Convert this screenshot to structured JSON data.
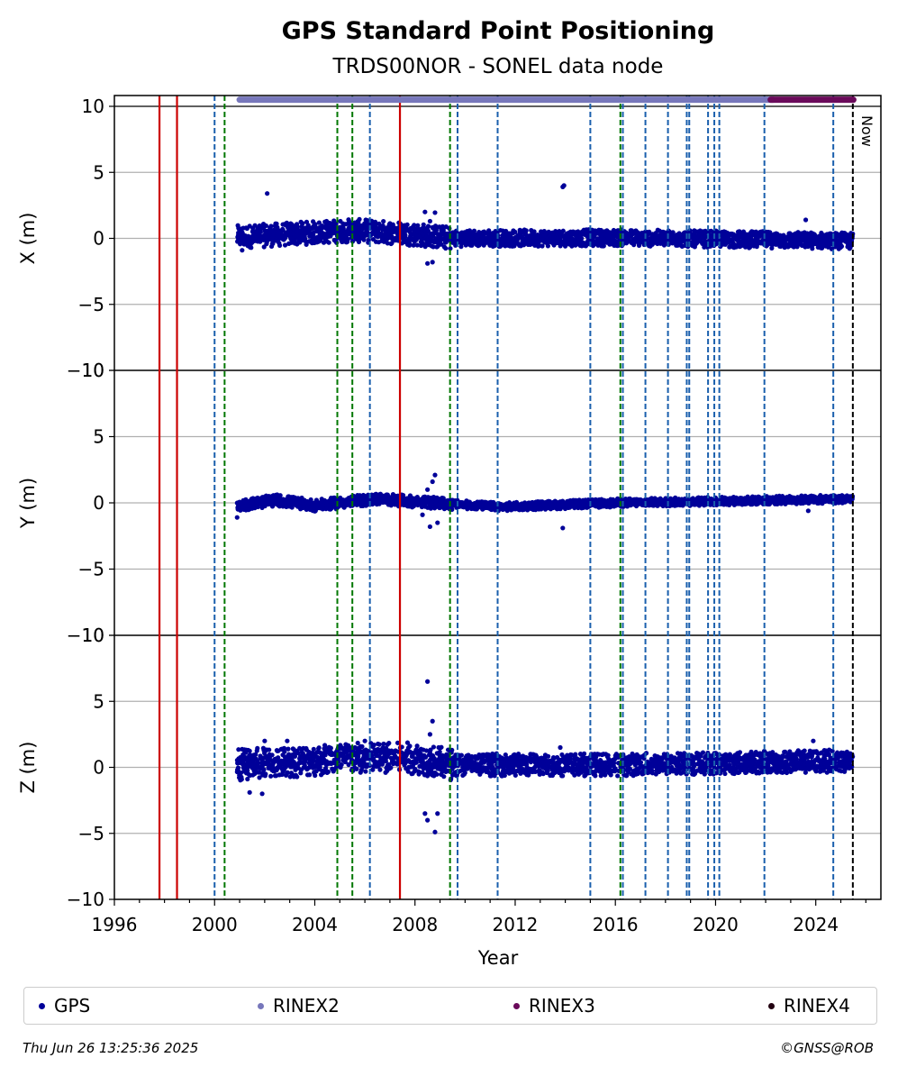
{
  "chart_data": {
    "type": "scatter",
    "title": "GPS Standard Point Positioning",
    "subtitle": "TRDS00NOR - SONEL data node",
    "xlabel": "Year",
    "xlim": [
      1996,
      2026.6
    ],
    "xticks": [
      1996,
      2000,
      2004,
      2008,
      2012,
      2016,
      2020,
      2024
    ],
    "now_label": "Now",
    "now_year": 2025.48,
    "panels": [
      {
        "ylabel": "X (m)",
        "ylim": [
          -10,
          11
        ],
        "yticks": [
          10,
          5,
          0,
          -5,
          -10
        ],
        "band": [
          -0.5,
          0.9
        ],
        "trend": [
          [
            2000.9,
            0.1
          ],
          [
            2005.5,
            0.6
          ],
          [
            2007.5,
            0.4
          ],
          [
            2009.5,
            0.0
          ],
          [
            2016,
            0.05
          ],
          [
            2025.5,
            -0.2
          ]
        ],
        "outliers": [
          [
            2002.1,
            3.4
          ],
          [
            2008.4,
            2.0
          ],
          [
            2008.5,
            -1.9
          ],
          [
            2008.7,
            -1.8
          ],
          [
            2008.8,
            1.95
          ],
          [
            2013.9,
            3.9
          ],
          [
            2013.95,
            4.0
          ],
          [
            2023.6,
            1.4
          ],
          [
            2001.1,
            -0.9
          ],
          [
            2008.6,
            1.3
          ]
        ]
      },
      {
        "ylabel": "Y (m)",
        "ylim": [
          -10,
          10
        ],
        "yticks": [
          10,
          5,
          0,
          -5,
          -10
        ],
        "band": [
          -0.35,
          0.35
        ],
        "trend": [
          [
            2000.9,
            -0.2
          ],
          [
            2002.5,
            0.2
          ],
          [
            2004.0,
            -0.2
          ],
          [
            2006.5,
            0.3
          ],
          [
            2009.5,
            -0.1
          ],
          [
            2011.5,
            -0.3
          ],
          [
            2016,
            0.0
          ],
          [
            2025.5,
            0.3
          ]
        ],
        "outliers": [
          [
            2008.5,
            1.0
          ],
          [
            2008.6,
            -1.8
          ],
          [
            2008.8,
            2.1
          ],
          [
            2008.7,
            1.6
          ],
          [
            2008.9,
            -1.5
          ],
          [
            2013.9,
            -1.9
          ],
          [
            2008.3,
            -0.9
          ],
          [
            2000.9,
            -1.1
          ],
          [
            2023.7,
            -0.6
          ]
        ]
      },
      {
        "ylabel": "Z (m)",
        "ylim": [
          -10,
          10
        ],
        "yticks": [
          10,
          5,
          0,
          -5,
          -10
        ],
        "band": [
          -0.9,
          1.0
        ],
        "trend": [
          [
            2000.9,
            0.2
          ],
          [
            2005.5,
            0.7
          ],
          [
            2008.0,
            0.7
          ],
          [
            2009.5,
            0.2
          ],
          [
            2016,
            0.2
          ],
          [
            2025.5,
            0.5
          ]
        ],
        "outliers": [
          [
            2008.5,
            6.5
          ],
          [
            2008.7,
            3.5
          ],
          [
            2008.6,
            2.5
          ],
          [
            2008.4,
            -3.5
          ],
          [
            2008.5,
            -4.0
          ],
          [
            2008.8,
            -4.9
          ],
          [
            2008.9,
            -3.5
          ],
          [
            2001.4,
            -1.9
          ],
          [
            2002.0,
            2.0
          ],
          [
            2002.9,
            2.0
          ],
          [
            2001.9,
            -2.0
          ],
          [
            2006.0,
            2.0
          ],
          [
            2023.9,
            2.0
          ],
          [
            2013.8,
            1.5
          ]
        ]
      }
    ],
    "events": [
      {
        "year": 1997.8,
        "color": "#cc0000",
        "style": "solid"
      },
      {
        "year": 1998.5,
        "color": "#cc0000",
        "style": "solid"
      },
      {
        "year": 2007.4,
        "color": "#cc0000",
        "style": "solid"
      },
      {
        "year": 2000.0,
        "color": "#1a5fad",
        "style": "dashed"
      },
      {
        "year": 2000.4,
        "color": "#007700",
        "style": "dashed"
      },
      {
        "year": 2004.9,
        "color": "#007700",
        "style": "dashed"
      },
      {
        "year": 2005.5,
        "color": "#007700",
        "style": "dashed"
      },
      {
        "year": 2006.2,
        "color": "#1a5fad",
        "style": "dashed"
      },
      {
        "year": 2009.4,
        "color": "#007700",
        "style": "dashed"
      },
      {
        "year": 2009.7,
        "color": "#1a5fad",
        "style": "dashed"
      },
      {
        "year": 2011.3,
        "color": "#1a5fad",
        "style": "dashed"
      },
      {
        "year": 2015.0,
        "color": "#1a5fad",
        "style": "dashed"
      },
      {
        "year": 2016.2,
        "color": "#007700",
        "style": "dashed"
      },
      {
        "year": 2016.3,
        "color": "#1a5fad",
        "style": "dashed"
      },
      {
        "year": 2017.2,
        "color": "#1a5fad",
        "style": "dashed"
      },
      {
        "year": 2018.1,
        "color": "#1a5fad",
        "style": "dashed"
      },
      {
        "year": 2018.85,
        "color": "#1a5fad",
        "style": "dashed"
      },
      {
        "year": 2018.95,
        "color": "#1a5fad",
        "style": "dashed"
      },
      {
        "year": 2019.7,
        "color": "#1a5fad",
        "style": "dashed"
      },
      {
        "year": 2019.95,
        "color": "#1a5fad",
        "style": "dashed"
      },
      {
        "year": 2020.15,
        "color": "#1a5fad",
        "style": "dashed"
      },
      {
        "year": 2021.95,
        "color": "#1a5fad",
        "style": "dashed"
      },
      {
        "year": 2024.7,
        "color": "#1a5fad",
        "style": "dashed"
      }
    ],
    "data_bars": [
      {
        "name": "RINEX2",
        "start": 2001.0,
        "end": 2022.3,
        "y": 10.5,
        "color": "#7777bb"
      },
      {
        "name": "RINEX3",
        "start": 2022.2,
        "end": 2025.5,
        "y": 10.5,
        "color": "#6a0a5a"
      }
    ],
    "grid": true,
    "legend_placement": "bottom",
    "legend": [
      {
        "name": "GPS",
        "color": "#000099"
      },
      {
        "name": "RINEX2",
        "color": "#7777bb"
      },
      {
        "name": "RINEX3",
        "color": "#6a0a5a"
      },
      {
        "name": "RINEX4",
        "color": "#220011"
      }
    ]
  },
  "footer": {
    "timestamp": "Thu Jun 26 13:25:36 2025",
    "credit": "©GNSS@ROB"
  }
}
